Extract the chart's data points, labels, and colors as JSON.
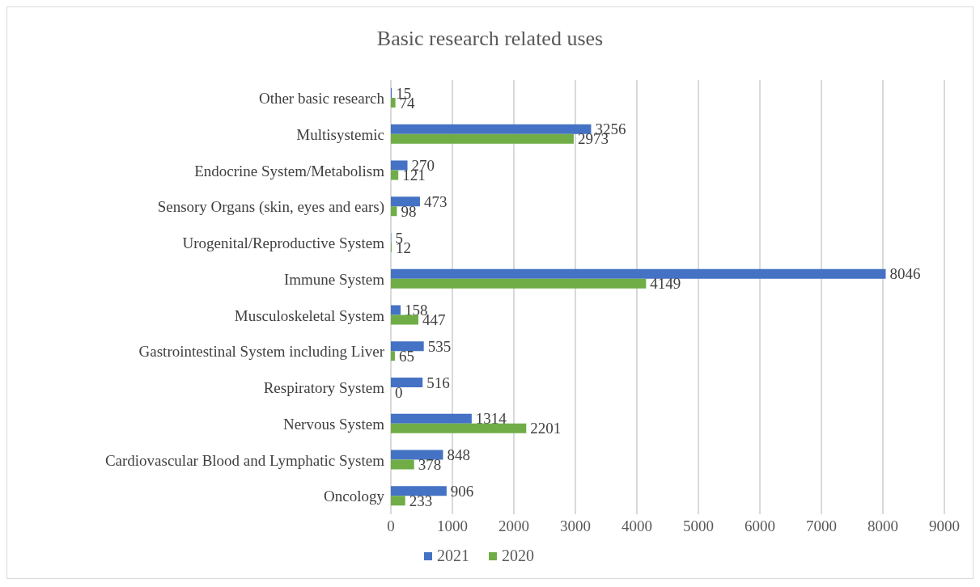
{
  "chart_data": {
    "type": "bar",
    "orientation": "horizontal",
    "title": "Basic research related uses",
    "categories": [
      "Other basic research",
      "Multisystemic",
      "Endocrine System/Metabolism",
      "Sensory Organs (skin, eyes and ears)",
      "Urogenital/Reproductive System",
      "Immune System",
      "Musculoskeletal System",
      "Gastrointestinal System including Liver",
      "Respiratory System",
      "Nervous System",
      "Cardiovascular Blood and Lymphatic System",
      "Oncology"
    ],
    "series": [
      {
        "name": "2021",
        "color": "#4472c4",
        "values": [
          15,
          3256,
          270,
          473,
          5,
          8046,
          158,
          535,
          516,
          1314,
          848,
          906
        ]
      },
      {
        "name": "2020",
        "color": "#70ad47",
        "values": [
          74,
          2973,
          121,
          98,
          12,
          4149,
          447,
          65,
          0,
          2201,
          378,
          233
        ]
      }
    ],
    "xlim": [
      0,
      9000
    ],
    "xticks": [
      0,
      1000,
      2000,
      3000,
      4000,
      5000,
      6000,
      7000,
      8000,
      9000
    ],
    "grid": "x",
    "legend": "bottom",
    "data_labels": true
  }
}
